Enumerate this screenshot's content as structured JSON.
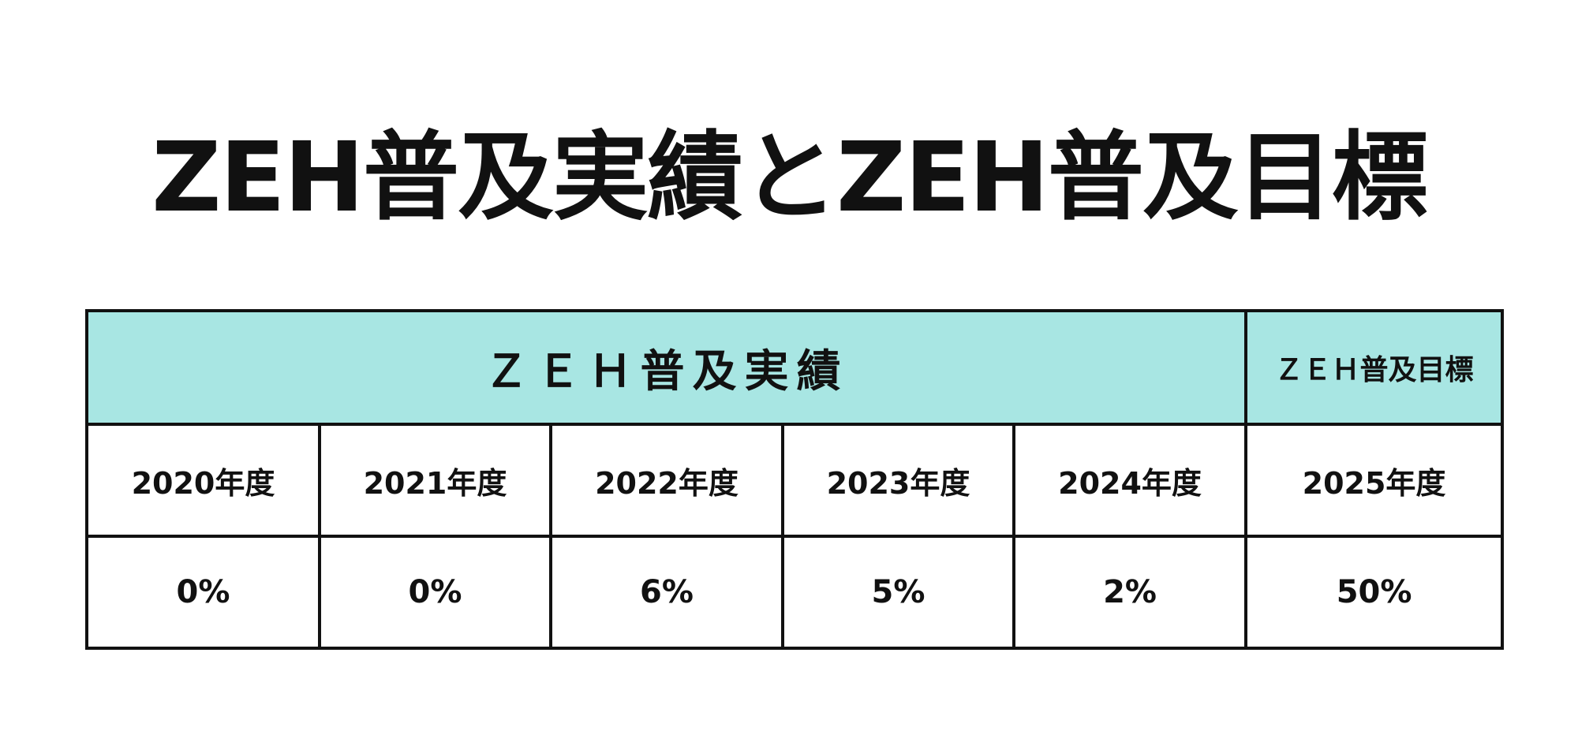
{
  "title": "ZEH普及実績とZEH普及目標",
  "table": {
    "header": {
      "actual": "ＺＥＨ普及実績",
      "target": "ＺＥＨ普及目標"
    },
    "rows": [
      [
        "2020年度",
        "2021年度",
        "2022年度",
        "2023年度",
        "2024年度",
        "2025年度"
      ],
      [
        "0%",
        "0%",
        "6%",
        "5%",
        "2%",
        "50%"
      ]
    ]
  }
}
